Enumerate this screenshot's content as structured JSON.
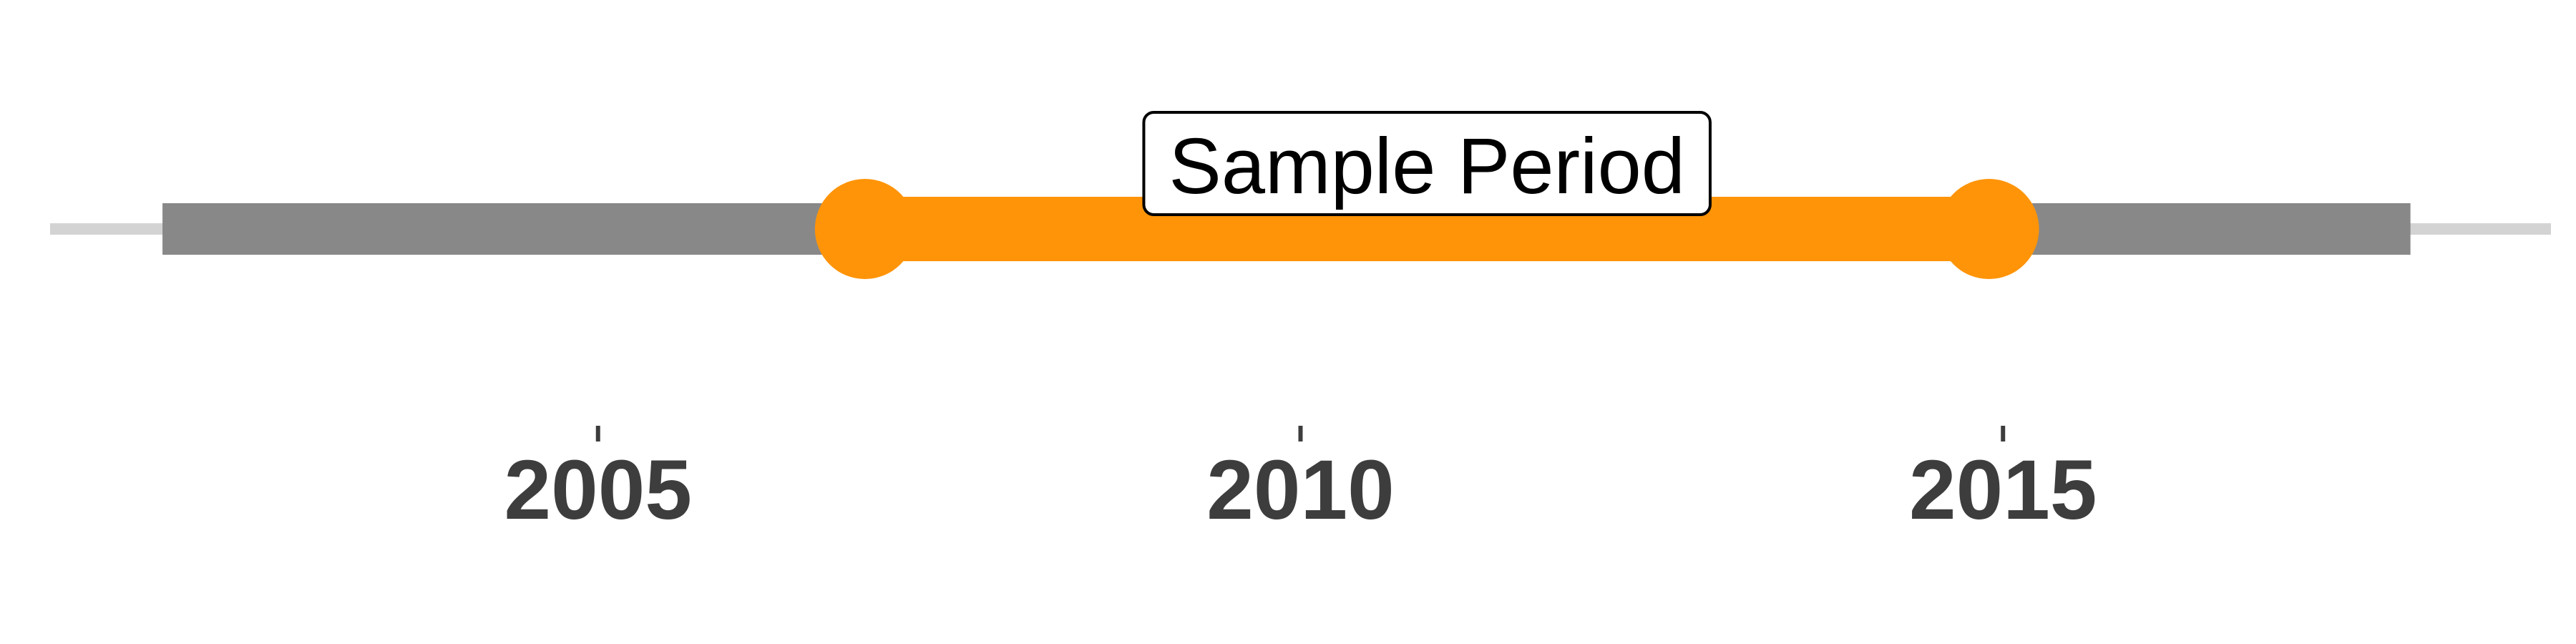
{
  "chart_data": {
    "type": "timeline",
    "axis": {
      "xlim": [
        2001.1,
        2018.9
      ],
      "ticks": [
        2005,
        2010,
        2015
      ],
      "tick_labels": [
        "2005",
        "2010",
        "2015"
      ]
    },
    "full_range": {
      "start": 2001.9,
      "end": 2017.9,
      "color": "#888888"
    },
    "highlight": {
      "start": 2006.9,
      "end": 2014.9,
      "label": "Sample Period",
      "color": "#ff9408"
    },
    "colors": {
      "baseline": "#d3d3d3",
      "tick_text": "#3d3d3d",
      "annotation_border": "#000000"
    }
  }
}
